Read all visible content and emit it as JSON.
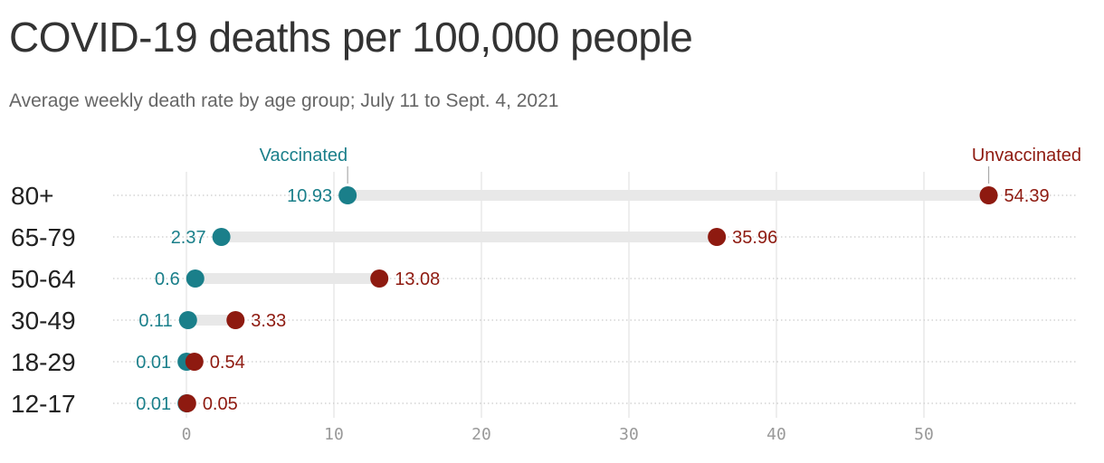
{
  "header": {
    "title": "COVID-19 deaths per 100,000 people",
    "subtitle": "Average weekly death rate by age group; July 11 to Sept. 4, 2021"
  },
  "colors": {
    "vaccinated": "#1a7f8a",
    "unvaccinated": "#8e1a10",
    "bar": "#e8e8e8",
    "grid": "#dddddd",
    "dotted": "#cccccc"
  },
  "chart_data": {
    "type": "dot",
    "categories": [
      "80+",
      "65-79",
      "50-64",
      "30-49",
      "18-29",
      "12-17"
    ],
    "series": [
      {
        "name": "Vaccinated",
        "values": [
          10.93,
          2.37,
          0.6,
          0.11,
          0.01,
          0.01
        ],
        "labels": [
          "10.93",
          "2.37",
          "0.6",
          "0.11",
          "0.01",
          "0.01"
        ]
      },
      {
        "name": "Unvaccinated",
        "values": [
          54.39,
          35.96,
          13.08,
          3.33,
          0.54,
          0.05
        ],
        "labels": [
          "54.39",
          "35.96",
          "13.08",
          "3.33",
          "0.54",
          "0.05"
        ]
      }
    ],
    "x_ticks": [
      0,
      10,
      20,
      30,
      40,
      50
    ],
    "xlim": [
      -5,
      60
    ],
    "grid": true,
    "legend_placement": "top, labels above the 80+ row"
  }
}
